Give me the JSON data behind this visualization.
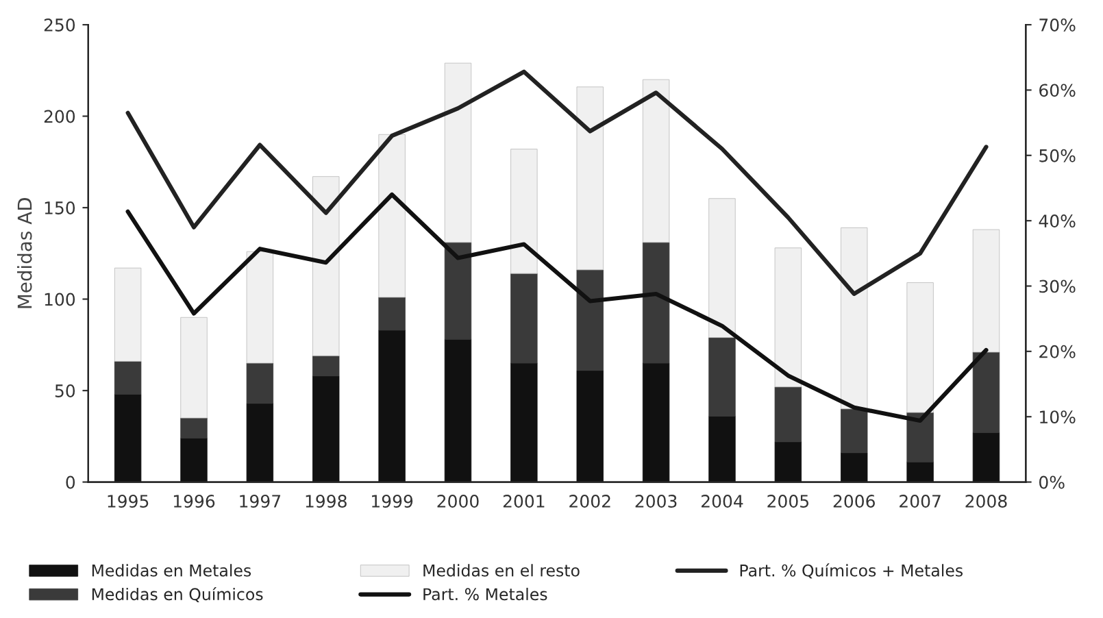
{
  "chart_data": {
    "type": "bar",
    "stacked": true,
    "ylabel": "Medidas AD",
    "categories": [
      "1995",
      "1996",
      "1997",
      "1998",
      "1999",
      "2000",
      "2001",
      "2002",
      "2003",
      "2004",
      "2005",
      "2006",
      "2007",
      "2008"
    ],
    "series": [
      {
        "name": "Medidas en Metales",
        "color": "#111111",
        "values": [
          48,
          24,
          43,
          58,
          83,
          78,
          65,
          61,
          65,
          36,
          22,
          16,
          11,
          27
        ]
      },
      {
        "name": "Medidas en Químicos",
        "color": "#3a3a3a",
        "values": [
          18,
          11,
          22,
          11,
          18,
          53,
          49,
          55,
          66,
          43,
          30,
          24,
          27,
          44
        ]
      },
      {
        "name": "Medidas en el resto",
        "color": "#f0f0f0",
        "values": [
          51,
          55,
          61,
          98,
          89,
          98,
          68,
          100,
          89,
          76,
          76,
          99,
          71,
          67
        ]
      },
      {
        "name": "Part. % Metales",
        "type": "line",
        "axis": "y2",
        "color": "#111111",
        "values": [
          41.4,
          25.8,
          35.7,
          33.6,
          44,
          34.3,
          36.4,
          27.7,
          28.8,
          23.9,
          16.3,
          11.4,
          9.4,
          20.2
        ]
      },
      {
        "name": "Part. % Químicos + Metales",
        "type": "line",
        "axis": "y2",
        "color": "#222222",
        "values": [
          56.5,
          39,
          51.6,
          41.2,
          53,
          57.2,
          62.8,
          53.7,
          59.6,
          51,
          40.5,
          28.8,
          35,
          51.3
        ]
      }
    ],
    "ylim": [
      0,
      250
    ],
    "yticks": [
      0,
      50,
      100,
      150,
      200,
      250
    ],
    "y2lim": [
      0,
      70
    ],
    "y2ticks": [
      {
        "value": 0,
        "label": "0%"
      },
      {
        "value": 10,
        "label": "10%"
      },
      {
        "value": 20,
        "label": "20%"
      },
      {
        "value": 30,
        "label": "30%"
      },
      {
        "value": 40,
        "label": "40%"
      },
      {
        "value": 50,
        "label": "50%"
      },
      {
        "value": 60,
        "label": "60%"
      },
      {
        "value": 70,
        "label": "70%"
      }
    ],
    "grid": false,
    "legend": "bottom",
    "marker": "none",
    "line_style": "solid"
  }
}
